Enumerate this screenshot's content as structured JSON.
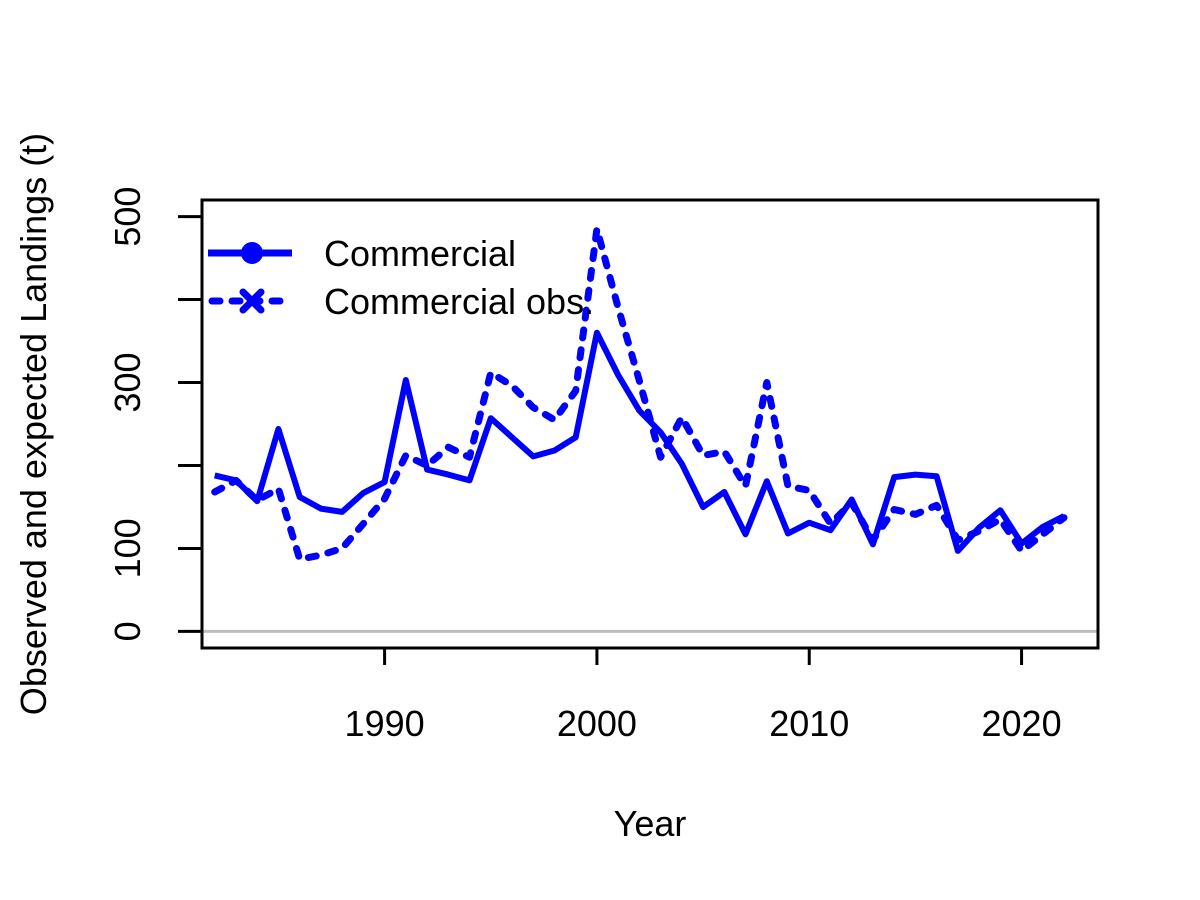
{
  "chart_data": {
    "type": "line",
    "xlabel": "Year",
    "ylabel": "Observed and expected Landings (t)",
    "xlim": [
      1981.4,
      2023.6
    ],
    "ylim": [
      -20,
      520
    ],
    "x_ticks": [
      1990,
      2000,
      2010,
      2020
    ],
    "y_ticks": [
      0,
      100,
      300,
      500
    ],
    "reference_line": {
      "y": 0,
      "color": "#bebebe"
    },
    "legend_position": "top-left",
    "x": [
      1982,
      1983,
      1984,
      1985,
      1986,
      1987,
      1988,
      1989,
      1990,
      1991,
      1992,
      1993,
      1994,
      1995,
      1996,
      1997,
      1998,
      1999,
      2000,
      2001,
      2002,
      2003,
      2004,
      2005,
      2006,
      2007,
      2008,
      2009,
      2010,
      2011,
      2012,
      2013,
      2014,
      2015,
      2016,
      2017,
      2018,
      2019,
      2020,
      2021,
      2022
    ],
    "series": [
      {
        "name": "Commercial",
        "style": "solid",
        "color": "#0000ff",
        "values": [
          188,
          182,
          157,
          244,
          162,
          148,
          144,
          167,
          180,
          303,
          195,
          189,
          182,
          257,
          234,
          211,
          218,
          234,
          360,
          309,
          266,
          240,
          202,
          150,
          168,
          117,
          181,
          118,
          131,
          122,
          159,
          105,
          186,
          189,
          187,
          97,
          125,
          146,
          106,
          126,
          139
        ]
      },
      {
        "name": "Commercial obs.",
        "style": "dotted",
        "color": "#0000ff",
        "values": [
          168,
          182,
          158,
          172,
          87,
          92,
          100,
          130,
          160,
          212,
          200,
          222,
          210,
          312,
          296,
          270,
          255,
          290,
          485,
          390,
          302,
          210,
          258,
          212,
          217,
          175,
          300,
          175,
          170,
          130,
          155,
          110,
          147,
          141,
          152,
          110,
          121,
          135,
          97,
          117,
          137
        ]
      }
    ]
  }
}
